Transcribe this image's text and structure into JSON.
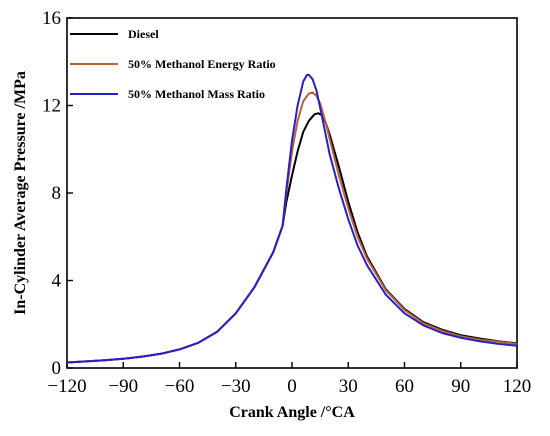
{
  "chart_data": {
    "type": "line",
    "title": "",
    "xlabel": "Crank Angle /°CA",
    "ylabel": "In-Cylinder Average Pressure /MPa",
    "xlim": [
      -120,
      120
    ],
    "ylim": [
      0,
      16
    ],
    "xticks": [
      -120,
      -90,
      -60,
      -30,
      0,
      30,
      60,
      90,
      120
    ],
    "yticks": [
      0,
      4,
      8,
      12,
      16
    ],
    "grid": false,
    "legend": "top-left",
    "series": [
      {
        "name": "Diesel",
        "color": "#000000",
        "x": [
          -120,
          -110,
          -100,
          -90,
          -80,
          -70,
          -60,
          -50,
          -40,
          -30,
          -20,
          -10,
          -5,
          -3,
          0,
          3,
          6,
          9,
          12,
          14,
          16,
          18,
          20,
          25,
          30,
          35,
          40,
          50,
          60,
          70,
          80,
          90,
          100,
          110,
          120
        ],
        "y": [
          0.25,
          0.3,
          0.35,
          0.42,
          0.52,
          0.65,
          0.85,
          1.15,
          1.65,
          2.5,
          3.7,
          5.3,
          6.5,
          7.6,
          8.8,
          9.9,
          10.8,
          11.3,
          11.6,
          11.65,
          11.55,
          11.2,
          10.7,
          9.2,
          7.6,
          6.2,
          5.1,
          3.6,
          2.7,
          2.1,
          1.75,
          1.5,
          1.35,
          1.22,
          1.13
        ]
      },
      {
        "name": "50% Methanol Energy Ratio",
        "color": "#b5653a",
        "x": [
          -120,
          -110,
          -100,
          -90,
          -80,
          -70,
          -60,
          -50,
          -40,
          -30,
          -20,
          -10,
          -5,
          -3,
          0,
          3,
          6,
          9,
          11,
          13,
          15,
          18,
          20,
          25,
          30,
          35,
          40,
          50,
          60,
          70,
          80,
          90,
          100,
          110,
          120
        ],
        "y": [
          0.25,
          0.3,
          0.35,
          0.42,
          0.52,
          0.65,
          0.85,
          1.15,
          1.65,
          2.5,
          3.7,
          5.3,
          6.5,
          8.0,
          9.9,
          11.3,
          12.2,
          12.55,
          12.6,
          12.45,
          12.1,
          11.2,
          10.5,
          8.8,
          7.3,
          6.0,
          5.0,
          3.55,
          2.65,
          2.05,
          1.7,
          1.45,
          1.3,
          1.2,
          1.1
        ]
      },
      {
        "name": "50% Methanol Mass Ratio",
        "color": "#2a1fc4",
        "x": [
          -120,
          -110,
          -100,
          -90,
          -80,
          -70,
          -60,
          -50,
          -40,
          -30,
          -20,
          -10,
          -5,
          -3,
          0,
          3,
          6,
          8,
          9,
          11,
          13,
          16,
          20,
          25,
          30,
          35,
          40,
          50,
          60,
          70,
          80,
          90,
          100,
          110,
          120
        ],
        "y": [
          0.25,
          0.3,
          0.35,
          0.42,
          0.52,
          0.65,
          0.85,
          1.15,
          1.65,
          2.5,
          3.7,
          5.3,
          6.5,
          8.2,
          10.4,
          12.0,
          13.1,
          13.4,
          13.4,
          13.2,
          12.7,
          11.5,
          9.8,
          8.2,
          6.8,
          5.6,
          4.7,
          3.35,
          2.5,
          1.95,
          1.6,
          1.38,
          1.22,
          1.1,
          1.02
        ]
      }
    ]
  }
}
